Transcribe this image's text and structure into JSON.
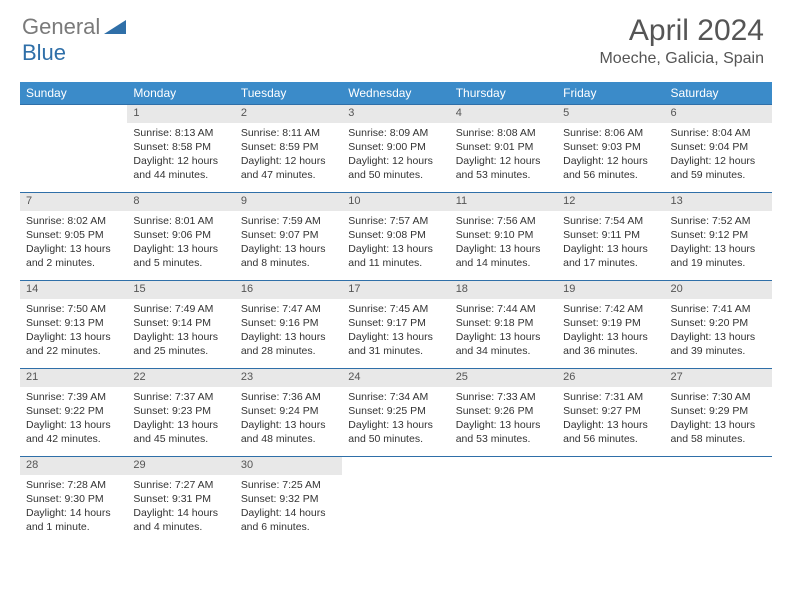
{
  "logo": {
    "gray": "General",
    "blue": "Blue"
  },
  "title": "April 2024",
  "location": "Moeche, Galicia, Spain",
  "colors": {
    "header_bg": "#3b8bc9",
    "daynum_bg": "#e8e8e8",
    "rule": "#2f6fa8",
    "logo_gray": "#7a7a7a",
    "logo_blue": "#2f6fa8"
  },
  "weekdays": [
    "Sunday",
    "Monday",
    "Tuesday",
    "Wednesday",
    "Thursday",
    "Friday",
    "Saturday"
  ],
  "weeks": [
    {
      "nums": [
        "",
        "1",
        "2",
        "3",
        "4",
        "5",
        "6"
      ],
      "cells": [
        "",
        "Sunrise: 8:13 AM\nSunset: 8:58 PM\nDaylight: 12 hours and 44 minutes.",
        "Sunrise: 8:11 AM\nSunset: 8:59 PM\nDaylight: 12 hours and 47 minutes.",
        "Sunrise: 8:09 AM\nSunset: 9:00 PM\nDaylight: 12 hours and 50 minutes.",
        "Sunrise: 8:08 AM\nSunset: 9:01 PM\nDaylight: 12 hours and 53 minutes.",
        "Sunrise: 8:06 AM\nSunset: 9:03 PM\nDaylight: 12 hours and 56 minutes.",
        "Sunrise: 8:04 AM\nSunset: 9:04 PM\nDaylight: 12 hours and 59 minutes."
      ]
    },
    {
      "nums": [
        "7",
        "8",
        "9",
        "10",
        "11",
        "12",
        "13"
      ],
      "cells": [
        "Sunrise: 8:02 AM\nSunset: 9:05 PM\nDaylight: 13 hours and 2 minutes.",
        "Sunrise: 8:01 AM\nSunset: 9:06 PM\nDaylight: 13 hours and 5 minutes.",
        "Sunrise: 7:59 AM\nSunset: 9:07 PM\nDaylight: 13 hours and 8 minutes.",
        "Sunrise: 7:57 AM\nSunset: 9:08 PM\nDaylight: 13 hours and 11 minutes.",
        "Sunrise: 7:56 AM\nSunset: 9:10 PM\nDaylight: 13 hours and 14 minutes.",
        "Sunrise: 7:54 AM\nSunset: 9:11 PM\nDaylight: 13 hours and 17 minutes.",
        "Sunrise: 7:52 AM\nSunset: 9:12 PM\nDaylight: 13 hours and 19 minutes."
      ]
    },
    {
      "nums": [
        "14",
        "15",
        "16",
        "17",
        "18",
        "19",
        "20"
      ],
      "cells": [
        "Sunrise: 7:50 AM\nSunset: 9:13 PM\nDaylight: 13 hours and 22 minutes.",
        "Sunrise: 7:49 AM\nSunset: 9:14 PM\nDaylight: 13 hours and 25 minutes.",
        "Sunrise: 7:47 AM\nSunset: 9:16 PM\nDaylight: 13 hours and 28 minutes.",
        "Sunrise: 7:45 AM\nSunset: 9:17 PM\nDaylight: 13 hours and 31 minutes.",
        "Sunrise: 7:44 AM\nSunset: 9:18 PM\nDaylight: 13 hours and 34 minutes.",
        "Sunrise: 7:42 AM\nSunset: 9:19 PM\nDaylight: 13 hours and 36 minutes.",
        "Sunrise: 7:41 AM\nSunset: 9:20 PM\nDaylight: 13 hours and 39 minutes."
      ]
    },
    {
      "nums": [
        "21",
        "22",
        "23",
        "24",
        "25",
        "26",
        "27"
      ],
      "cells": [
        "Sunrise: 7:39 AM\nSunset: 9:22 PM\nDaylight: 13 hours and 42 minutes.",
        "Sunrise: 7:37 AM\nSunset: 9:23 PM\nDaylight: 13 hours and 45 minutes.",
        "Sunrise: 7:36 AM\nSunset: 9:24 PM\nDaylight: 13 hours and 48 minutes.",
        "Sunrise: 7:34 AM\nSunset: 9:25 PM\nDaylight: 13 hours and 50 minutes.",
        "Sunrise: 7:33 AM\nSunset: 9:26 PM\nDaylight: 13 hours and 53 minutes.",
        "Sunrise: 7:31 AM\nSunset: 9:27 PM\nDaylight: 13 hours and 56 minutes.",
        "Sunrise: 7:30 AM\nSunset: 9:29 PM\nDaylight: 13 hours and 58 minutes."
      ]
    },
    {
      "nums": [
        "28",
        "29",
        "30",
        "",
        "",
        "",
        ""
      ],
      "cells": [
        "Sunrise: 7:28 AM\nSunset: 9:30 PM\nDaylight: 14 hours and 1 minute.",
        "Sunrise: 7:27 AM\nSunset: 9:31 PM\nDaylight: 14 hours and 4 minutes.",
        "Sunrise: 7:25 AM\nSunset: 9:32 PM\nDaylight: 14 hours and 6 minutes.",
        "",
        "",
        "",
        ""
      ]
    }
  ]
}
